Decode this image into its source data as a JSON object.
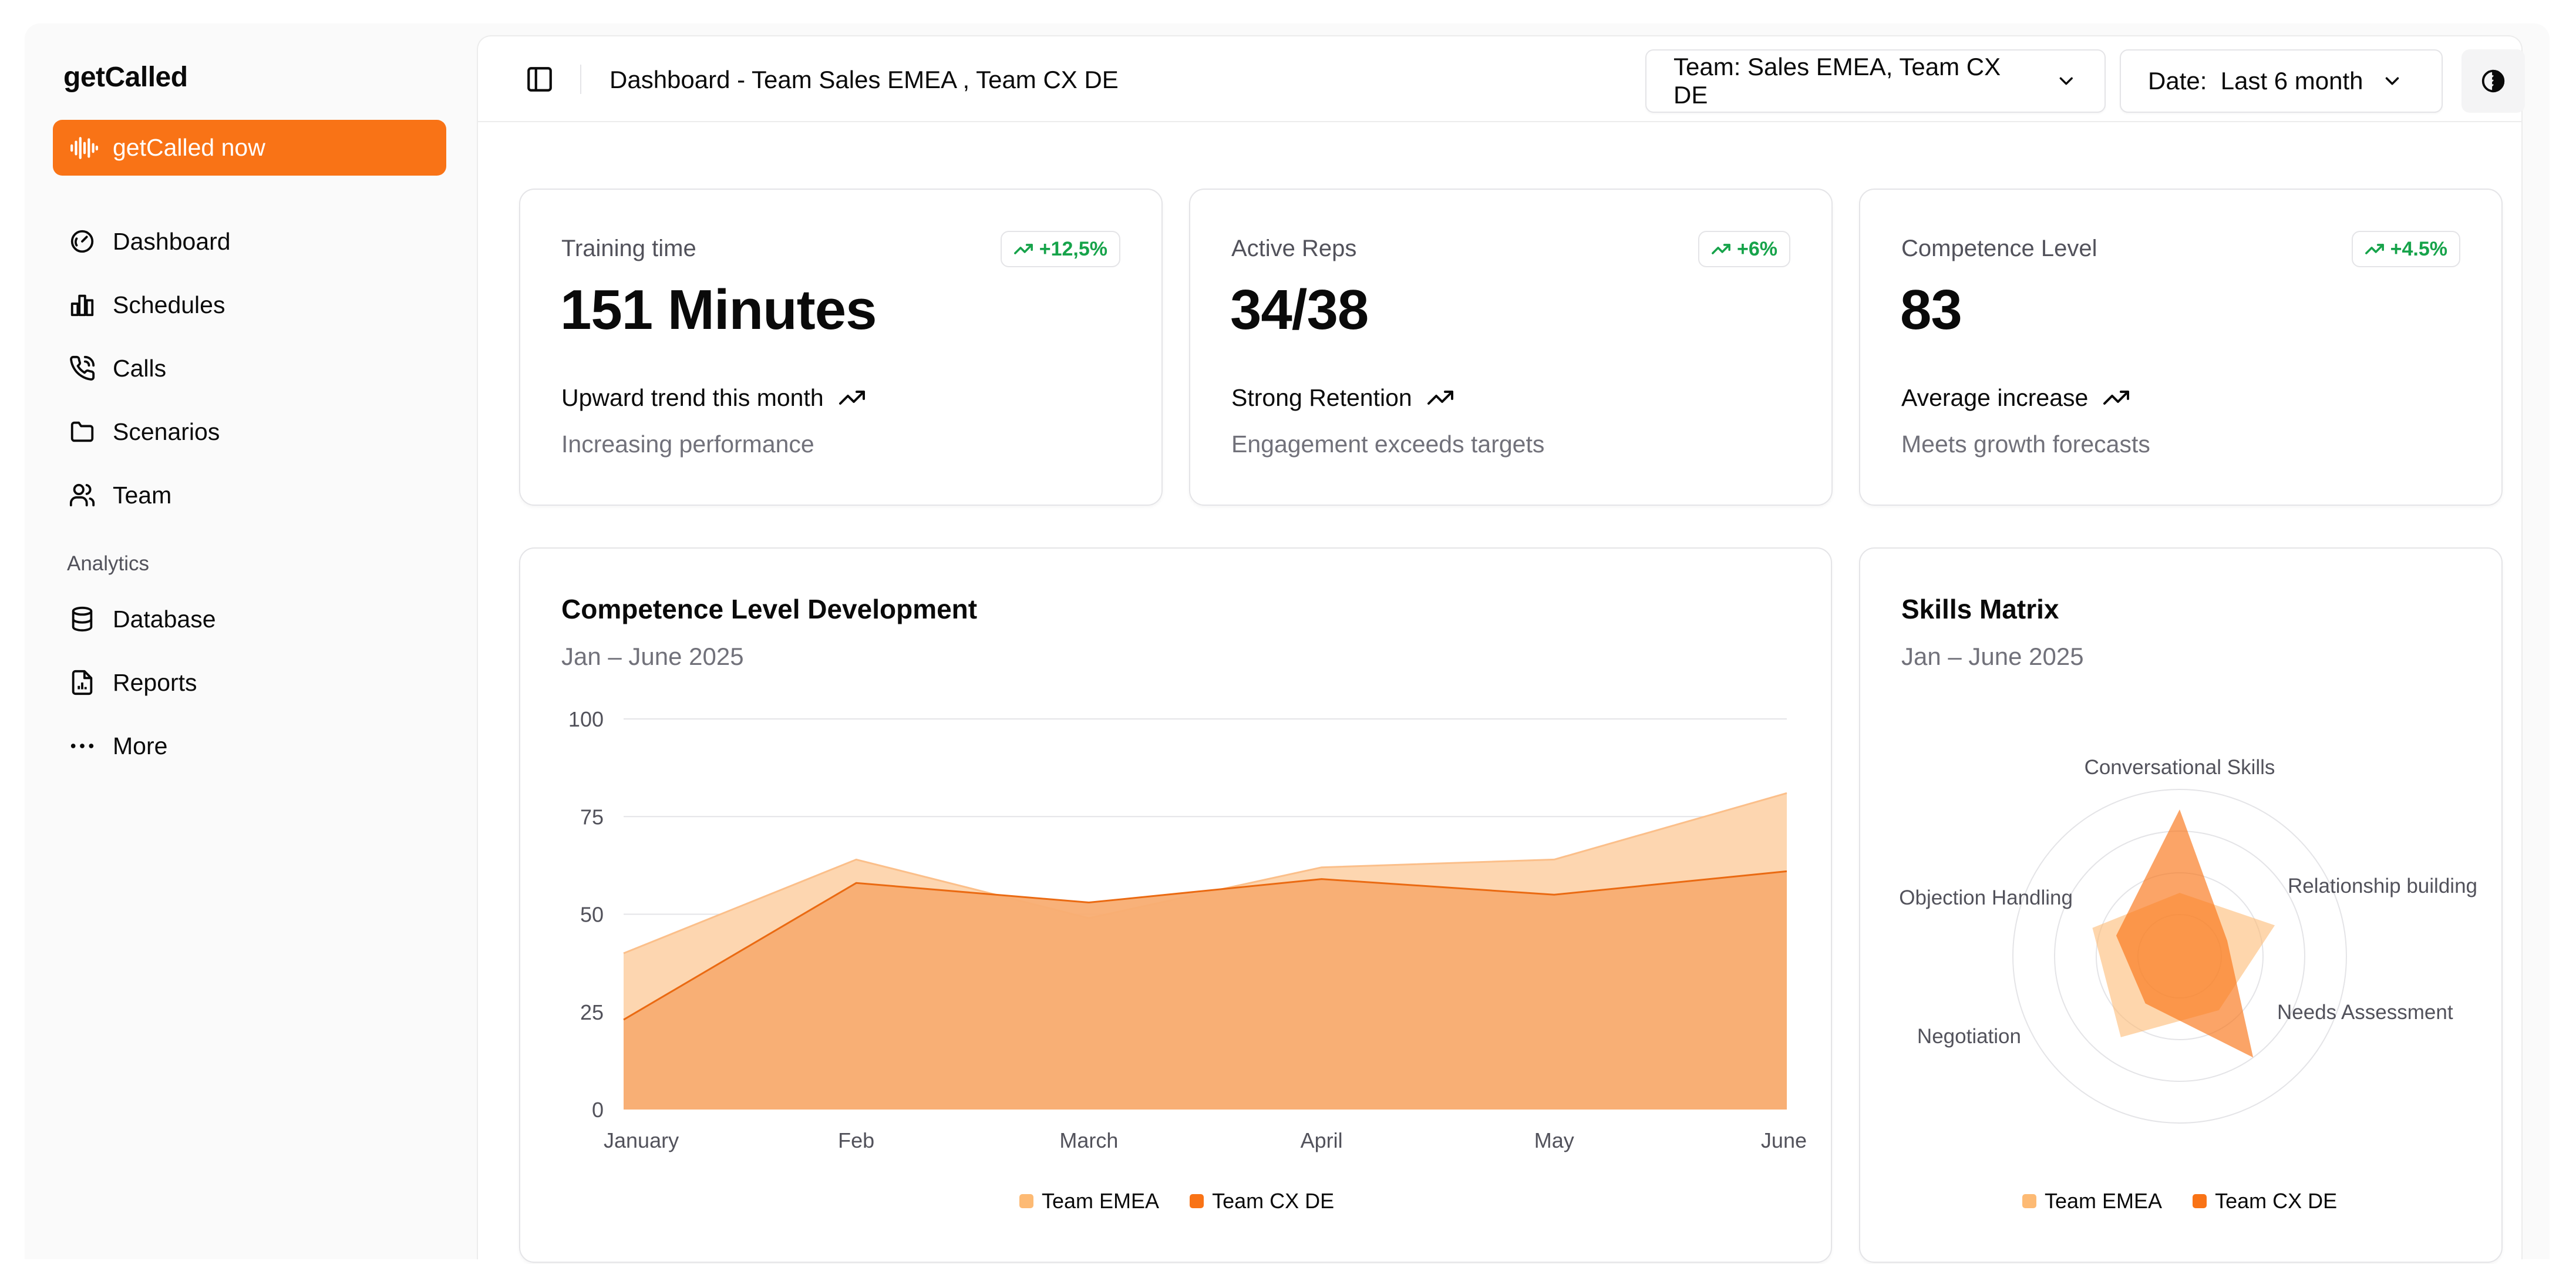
{
  "app": {
    "brand": "getCalled",
    "cta_label": "getCalled now"
  },
  "sidebar": {
    "main_items": [
      {
        "label": "Dashboard",
        "icon": "gauge-icon"
      },
      {
        "label": "Schedules",
        "icon": "bar-chart-icon"
      },
      {
        "label": "Calls",
        "icon": "phone-icon"
      },
      {
        "label": "Scenarios",
        "icon": "folder-icon"
      },
      {
        "label": "Team",
        "icon": "users-icon"
      }
    ],
    "analytics_label": "Analytics",
    "analytics_items": [
      {
        "label": "Database",
        "icon": "database-icon"
      },
      {
        "label": "Reports",
        "icon": "file-chart-icon"
      },
      {
        "label": "More",
        "icon": "more-icon"
      }
    ]
  },
  "header": {
    "breadcrumb": "Dashboard - Team Sales EMEA , Team CX DE",
    "team_filter": "Team: Sales EMEA, Team CX DE",
    "date_filter": "Date:  Last 6 month"
  },
  "stats": [
    {
      "label": "Training time",
      "badge": "+12,5%",
      "value": "151 Minutes",
      "trend": "Upward trend this month",
      "sub": "Increasing performance"
    },
    {
      "label": "Active Reps",
      "badge": "+6%",
      "value": "34/38",
      "trend": "Strong Retention",
      "sub": "Engagement exceeds targets"
    },
    {
      "label": "Competence Level",
      "badge": "+4.5%",
      "value": "83",
      "trend": "Average increase",
      "sub": "Meets growth forecasts"
    }
  ],
  "colors": {
    "accent": "#f97316",
    "emea": "#fdba74",
    "cxde": "#f97316",
    "positive": "#16a34a"
  },
  "chart_data": [
    {
      "type": "area",
      "title": "Competence Level Development",
      "subtitle": "Jan – June 2025",
      "categories": [
        "January",
        "Feb",
        "March",
        "April",
        "May",
        "June"
      ],
      "ylim": [
        0,
        100
      ],
      "yticks": [
        0,
        25,
        50,
        75,
        100
      ],
      "grid": true,
      "legend": "bottom",
      "series": [
        {
          "name": "Team EMEA",
          "values": [
            40,
            64,
            49,
            62,
            64,
            81
          ]
        },
        {
          "name": "Team CX DE",
          "values": [
            23,
            58,
            53,
            59,
            55,
            61
          ]
        }
      ]
    },
    {
      "type": "radar",
      "title": "Skills Matrix",
      "subtitle": "Jan – June 2025",
      "axes": [
        "Conversational Skills",
        "Relationship building",
        "Needs Assessment",
        "Negotiation",
        "Objection Handling"
      ],
      "rmax": 100,
      "legend": "bottom",
      "series": [
        {
          "name": "Team EMEA",
          "values": [
            38,
            60,
            40,
            60,
            55
          ]
        },
        {
          "name": "Team CX DE",
          "values": [
            88,
            30,
            75,
            35,
            40
          ]
        }
      ]
    }
  ]
}
